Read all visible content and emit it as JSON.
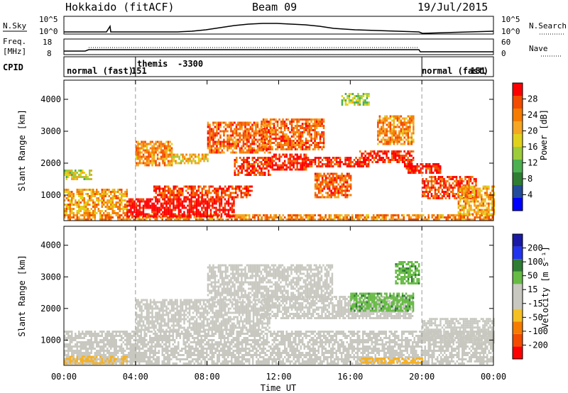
{
  "header": {
    "station": "Hokkaido (fitACF)",
    "beam": "Beam 09",
    "date": "19/Jul/2015"
  },
  "nsky_panel": {
    "label": "N.Sky",
    "left_ticks": [
      "10^5",
      "10^0"
    ],
    "right_ticks": [
      "10^5",
      "10^0"
    ],
    "right_label": "N.Search",
    "right_label_line": "dotted"
  },
  "freq_panel": {
    "label_top": "Freq.",
    "label_bottom": "[MHz]",
    "left_ticks": [
      "18",
      "8"
    ],
    "right_ticks": [
      "60",
      "0"
    ],
    "right_label": "Nave",
    "right_label_line": "dotted"
  },
  "cpid_panel": {
    "label": "CPID",
    "segments": [
      {
        "text": "normal (fast)",
        "id": "151",
        "start_hour": 0,
        "end_hour": 4
      },
      {
        "text": "themis",
        "id": "-3300",
        "start_hour": 4,
        "end_hour": 20
      },
      {
        "text": "normal (fast)",
        "id": "151",
        "start_hour": 20,
        "end_hour": 24
      }
    ]
  },
  "x_axis": {
    "label": "Time UT",
    "ticks": [
      "00:00",
      "04:00",
      "08:00",
      "12:00",
      "16:00",
      "20:00",
      "00:00"
    ],
    "tick_hours": [
      0,
      4,
      8,
      12,
      16,
      20,
      24
    ],
    "range_hours": [
      0,
      24
    ],
    "mode_change_hours": [
      4,
      20
    ]
  },
  "power_panel": {
    "ylabel": "Slant Range [km]",
    "yticks": [
      "1000",
      "2000",
      "3000",
      "4000"
    ],
    "ytick_values": [
      1000,
      2000,
      3000,
      4000
    ],
    "yrange_km": [
      200,
      4600
    ],
    "colorbar_label": "Power [dB]",
    "colorbar_ticks": [
      "4",
      "8",
      "12",
      "16",
      "20",
      "24",
      "28"
    ],
    "colorbar_colors": [
      "#0000ff",
      "#234b9a",
      "#2e7d32",
      "#4caf50",
      "#9ccc3a",
      "#e0d21c",
      "#f5a623",
      "#f57c00",
      "#f34b00",
      "#ff0000"
    ]
  },
  "velocity_panel": {
    "ylabel": "Slant Range [km]",
    "yticks": [
      "1000",
      "2000",
      "3000",
      "4000"
    ],
    "ytick_values": [
      1000,
      2000,
      3000,
      4000
    ],
    "yrange_km": [
      200,
      4600
    ],
    "colorbar_label": "Velocity [m s⁻¹]",
    "colorbar_ticks": [
      "200",
      "100",
      "50",
      "15",
      "-15",
      "-50",
      "-100",
      "-200"
    ],
    "colorbar_colors": [
      "#1a1aa6",
      "#2233ee",
      "#2e7d32",
      "#66bb44",
      "#c8c8c0",
      "#c8c8c0",
      "#f5c023",
      "#f57c00",
      "#f34b00",
      "#ff0000"
    ]
  },
  "chart_data": {
    "type": "heatmap",
    "x_unit": "hours UT",
    "y_unit": "km",
    "power_bands": [
      {
        "t_start": 0.0,
        "t_end": 24.0,
        "r_start": 250,
        "r_end": 400,
        "power_db": 22
      },
      {
        "t_start": 0.0,
        "t_end": 3.5,
        "r_start": 400,
        "r_end": 1200,
        "power_db": 20
      },
      {
        "t_start": 0.0,
        "t_end": 1.5,
        "r_start": 1500,
        "r_end": 1800,
        "power_db": 16
      },
      {
        "t_start": 3.5,
        "t_end": 9.5,
        "r_start": 300,
        "r_end": 900,
        "power_db": 30
      },
      {
        "t_start": 5.0,
        "t_end": 10.5,
        "r_start": 900,
        "r_end": 1300,
        "power_db": 26
      },
      {
        "t_start": 4.0,
        "t_end": 6.0,
        "r_start": 1900,
        "r_end": 2700,
        "power_db": 22
      },
      {
        "t_start": 6.0,
        "t_end": 8.0,
        "r_start": 2000,
        "r_end": 2300,
        "power_db": 18
      },
      {
        "t_start": 8.0,
        "t_end": 11.5,
        "r_start": 2300,
        "r_end": 3300,
        "power_db": 24
      },
      {
        "t_start": 9.5,
        "t_end": 11.5,
        "r_start": 1600,
        "r_end": 2200,
        "power_db": 26
      },
      {
        "t_start": 11.0,
        "t_end": 14.5,
        "r_start": 2400,
        "r_end": 3400,
        "power_db": 24
      },
      {
        "t_start": 11.5,
        "t_end": 13.5,
        "r_start": 1800,
        "r_end": 2300,
        "power_db": 28
      },
      {
        "t_start": 13.5,
        "t_end": 17.0,
        "r_start": 1900,
        "r_end": 2200,
        "power_db": 28
      },
      {
        "t_start": 14.0,
        "t_end": 16.0,
        "r_start": 900,
        "r_end": 1700,
        "power_db": 24
      },
      {
        "t_start": 16.5,
        "t_end": 19.5,
        "r_start": 2000,
        "r_end": 2400,
        "power_db": 28
      },
      {
        "t_start": 17.5,
        "t_end": 19.5,
        "r_start": 2600,
        "r_end": 3500,
        "power_db": 22
      },
      {
        "t_start": 19.0,
        "t_end": 21.0,
        "r_start": 1700,
        "r_end": 2000,
        "power_db": 28
      },
      {
        "t_start": 20.0,
        "t_end": 23.0,
        "r_start": 900,
        "r_end": 1600,
        "power_db": 26
      },
      {
        "t_start": 22.0,
        "t_end": 24.0,
        "r_start": 400,
        "r_end": 1300,
        "power_db": 20
      },
      {
        "t_start": 15.5,
        "t_end": 17.0,
        "r_start": 3800,
        "r_end": 4200,
        "power_db": 14
      }
    ],
    "velocity_bands": [
      {
        "t_start": 0.0,
        "t_end": 24.0,
        "r_start": 250,
        "r_end": 1300,
        "velocity_ms": 0
      },
      {
        "t_start": 4.0,
        "t_end": 11.5,
        "r_start": 1300,
        "r_end": 2300,
        "velocity_ms": 0
      },
      {
        "t_start": 8.0,
        "t_end": 15.0,
        "r_start": 2300,
        "r_end": 3400,
        "velocity_ms": 0
      },
      {
        "t_start": 11.0,
        "t_end": 19.5,
        "r_start": 1700,
        "r_end": 2400,
        "velocity_ms": 0
      },
      {
        "t_start": 16.0,
        "t_end": 19.5,
        "r_start": 1900,
        "r_end": 2500,
        "velocity_ms": 40
      },
      {
        "t_start": 18.5,
        "t_end": 19.8,
        "r_start": 2800,
        "r_end": 3500,
        "velocity_ms": 40
      },
      {
        "t_start": 16.5,
        "t_end": 20.0,
        "r_start": 250,
        "r_end": 450,
        "velocity_ms": -30
      },
      {
        "t_start": 20.0,
        "t_end": 24.0,
        "r_start": 900,
        "r_end": 1700,
        "velocity_ms": 0
      },
      {
        "t_start": 0.0,
        "t_end": 3.5,
        "r_start": 250,
        "r_end": 500,
        "velocity_ms": -20
      }
    ]
  }
}
